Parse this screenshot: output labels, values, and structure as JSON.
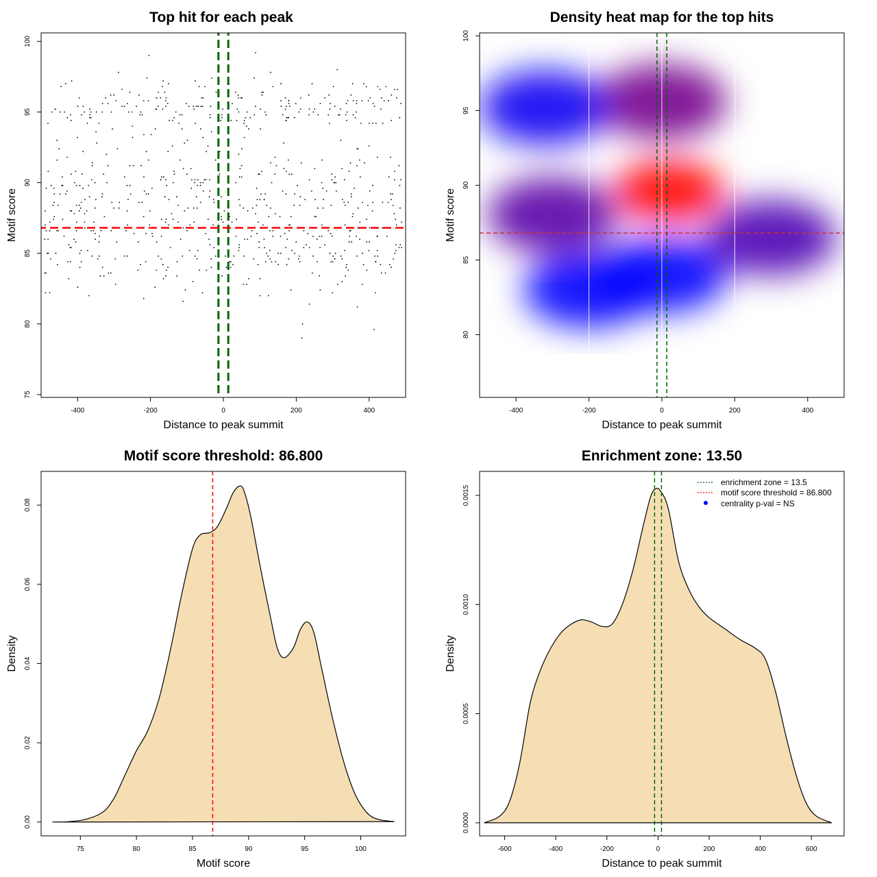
{
  "chart_data": [
    {
      "type": "scatter",
      "title": "Top hit for each peak",
      "xlabel": "Distance to peak summit",
      "ylabel": "Motif score",
      "xlim": [
        -500,
        500
      ],
      "ylim": [
        74.8,
        100.6
      ],
      "x_ticks": [
        "-400",
        "-200",
        "0",
        "200",
        "400"
      ],
      "y_ticks": [
        "75",
        "80",
        "85",
        "90",
        "95",
        "100"
      ],
      "threshold_line": 86.8,
      "zone_lines": [
        -13.5,
        13.5
      ],
      "n_points": 750,
      "point_model": "approx. uniform in x over [-490, 490]; motif scores concentrated 80-97 with clusters near 89-90 and 95.5"
    },
    {
      "type": "heatmap",
      "title": "Density heat map for the top hits",
      "xlabel": "Distance to peak summit",
      "ylabel": "Motif score",
      "xlim": [
        -500,
        500
      ],
      "ylim": [
        75.8,
        100.2
      ],
      "x_ticks": [
        "-400",
        "-200",
        "0",
        "200",
        "400"
      ],
      "y_ticks": [
        "80",
        "85",
        "90",
        "95",
        "100"
      ],
      "threshold_line": 86.8,
      "zone_lines": [
        -13.5,
        13.5
      ],
      "white_grid_lines": [
        -200,
        0,
        200
      ],
      "colormap": [
        "#ffffff",
        "#0000ff",
        "#ff0000"
      ],
      "hotspots": [
        {
          "x": 20,
          "y": 89.6,
          "intensity": 1.0
        },
        {
          "x": 0,
          "y": 95.6,
          "intensity": 0.78
        },
        {
          "x": -320,
          "y": 95.2,
          "intensity": 0.62
        },
        {
          "x": -300,
          "y": 88.0,
          "intensity": 0.74
        },
        {
          "x": 300,
          "y": 86.5,
          "intensity": 0.72
        },
        {
          "x": 0,
          "y": 84.0,
          "intensity": 0.58
        },
        {
          "x": -200,
          "y": 83.0,
          "intensity": 0.52
        }
      ]
    },
    {
      "type": "area",
      "title": "Motif score threshold: 86.800",
      "xlabel": "Motif score",
      "ylabel": "Density",
      "xlim": [
        71.5,
        104
      ],
      "ylim": [
        -0.0035,
        0.0885
      ],
      "x_ticks": [
        "75",
        "80",
        "85",
        "90",
        "95",
        "100"
      ],
      "y_ticks": [
        "0.00",
        "0.02",
        "0.04",
        "0.06",
        "0.08"
      ],
      "threshold_line": 86.8,
      "fill_color": "#f5deb3",
      "curve": [
        [
          72.5,
          0
        ],
        [
          74,
          0.0001
        ],
        [
          75.5,
          0.0007
        ],
        [
          77,
          0.0025
        ],
        [
          78,
          0.006
        ],
        [
          79,
          0.012
        ],
        [
          80,
          0.018
        ],
        [
          81,
          0.023
        ],
        [
          82,
          0.031
        ],
        [
          83,
          0.043
        ],
        [
          84,
          0.057
        ],
        [
          85,
          0.069
        ],
        [
          85.7,
          0.0725
        ],
        [
          86.5,
          0.073
        ],
        [
          87.2,
          0.0745
        ],
        [
          88,
          0.079
        ],
        [
          88.6,
          0.083
        ],
        [
          89.2,
          0.0848
        ],
        [
          89.6,
          0.0835
        ],
        [
          90.2,
          0.077
        ],
        [
          91,
          0.065
        ],
        [
          92,
          0.051
        ],
        [
          92.6,
          0.0435
        ],
        [
          93.2,
          0.0415
        ],
        [
          94,
          0.044
        ],
        [
          94.6,
          0.0485
        ],
        [
          95.2,
          0.0505
        ],
        [
          95.8,
          0.048
        ],
        [
          96.5,
          0.039
        ],
        [
          97.5,
          0.026
        ],
        [
          98.5,
          0.015
        ],
        [
          99.5,
          0.007
        ],
        [
          100.5,
          0.0025
        ],
        [
          101.5,
          0.0007
        ],
        [
          103,
          0.0001
        ]
      ]
    },
    {
      "type": "area",
      "title": "Enrichment zone: 13.50",
      "xlabel": "Distance to peak summit",
      "ylabel": "Density",
      "xlim": [
        -698,
        728
      ],
      "ylim": [
        -6e-05,
        0.00161
      ],
      "x_ticks": [
        "-600",
        "-400",
        "-200",
        "0",
        "200",
        "400",
        "600"
      ],
      "y_ticks": [
        "0.0000",
        "0.0005",
        "0.0010",
        "0.0015"
      ],
      "zone_lines": [
        -13.5,
        13.5
      ],
      "fill_color": "#f5deb3",
      "curve": [
        [
          -680,
          0
        ],
        [
          -620,
          3e-05
        ],
        [
          -580,
          0.0001
        ],
        [
          -540,
          0.00028
        ],
        [
          -500,
          0.00055
        ],
        [
          -460,
          0.0007
        ],
        [
          -420,
          0.0008
        ],
        [
          -380,
          0.00087
        ],
        [
          -340,
          0.00091
        ],
        [
          -300,
          0.00093
        ],
        [
          -260,
          0.00092
        ],
        [
          -220,
          0.0009
        ],
        [
          -180,
          0.00091
        ],
        [
          -140,
          0.001
        ],
        [
          -100,
          0.00115
        ],
        [
          -60,
          0.00135
        ],
        [
          -30,
          0.00149
        ],
        [
          -10,
          0.00153
        ],
        [
          10,
          0.00152
        ],
        [
          40,
          0.00144
        ],
        [
          80,
          0.0012
        ],
        [
          120,
          0.00107
        ],
        [
          160,
          0.00099
        ],
        [
          200,
          0.00094
        ],
        [
          260,
          0.00089
        ],
        [
          320,
          0.00084
        ],
        [
          380,
          0.0008
        ],
        [
          420,
          0.00075
        ],
        [
          460,
          0.0006
        ],
        [
          500,
          0.0004
        ],
        [
          540,
          0.00022
        ],
        [
          580,
          9e-05
        ],
        [
          620,
          3e-05
        ],
        [
          680,
          0
        ]
      ],
      "legend": [
        {
          "label": "enrichment zone = 13.5",
          "color": "#006400",
          "style": "dotted-line"
        },
        {
          "label": "motif score threshold = 86.800",
          "color": "#ff0000",
          "style": "dotted-line"
        },
        {
          "label": "centrality p-val = NS",
          "color": "#0000ff",
          "style": "dot"
        }
      ],
      "legend_position": "top-right"
    }
  ]
}
